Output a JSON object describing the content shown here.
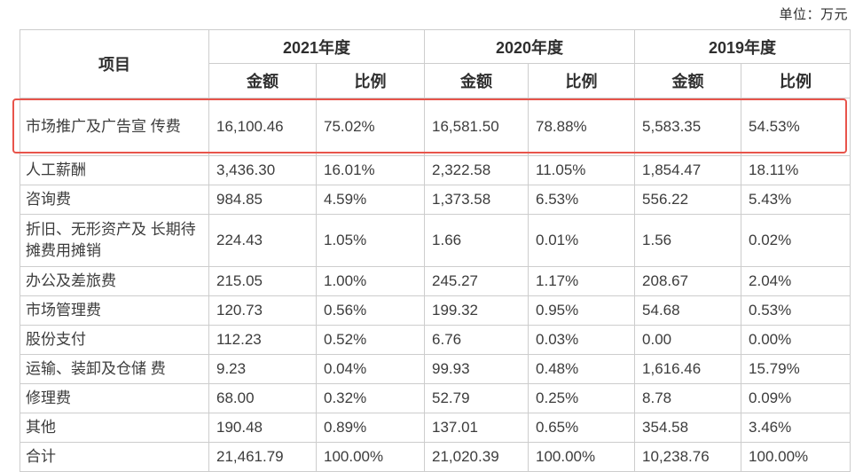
{
  "unit_label": "单位：万元",
  "table": {
    "item_header": "项目",
    "year_groups": [
      {
        "label": "2021年度"
      },
      {
        "label": "2020年度"
      },
      {
        "label": "2019年度"
      }
    ],
    "sub_headers": {
      "amount": "金额",
      "ratio": "比例"
    },
    "rows": [
      {
        "item": "市场推广及广告宣 传费",
        "highlighted": true,
        "values": [
          "16,100.46",
          "75.02%",
          "16,581.50",
          "78.88%",
          "5,583.35",
          "54.53%"
        ]
      },
      {
        "item": "人工薪酬",
        "highlighted": false,
        "values": [
          "3,436.30",
          "16.01%",
          "2,322.58",
          "11.05%",
          "1,854.47",
          "18.11%"
        ]
      },
      {
        "item": "咨询费",
        "highlighted": false,
        "values": [
          "984.85",
          "4.59%",
          "1,373.58",
          "6.53%",
          "556.22",
          "5.43%"
        ]
      },
      {
        "item": "折旧、无形资产及 长期待摊费用摊销",
        "highlighted": false,
        "values": [
          "224.43",
          "1.05%",
          "1.66",
          "0.01%",
          "1.56",
          "0.02%"
        ]
      },
      {
        "item": "办公及差旅费",
        "highlighted": false,
        "values": [
          "215.05",
          "1.00%",
          "245.27",
          "1.17%",
          "208.67",
          "2.04%"
        ]
      },
      {
        "item": "市场管理费",
        "highlighted": false,
        "values": [
          "120.73",
          "0.56%",
          "199.32",
          "0.95%",
          "54.68",
          "0.53%"
        ]
      },
      {
        "item": "股份支付",
        "highlighted": false,
        "values": [
          "112.23",
          "0.52%",
          "6.76",
          "0.03%",
          "0.00",
          "0.00%"
        ]
      },
      {
        "item": "运输、装卸及仓储 费",
        "highlighted": false,
        "values": [
          "9.23",
          "0.04%",
          "99.93",
          "0.48%",
          "1,616.46",
          "15.79%"
        ]
      },
      {
        "item": "修理费",
        "highlighted": false,
        "values": [
          "68.00",
          "0.32%",
          "52.79",
          "0.25%",
          "8.78",
          "0.09%"
        ]
      },
      {
        "item": "其他",
        "highlighted": false,
        "values": [
          "190.48",
          "0.89%",
          "137.01",
          "0.65%",
          "354.58",
          "3.46%"
        ]
      },
      {
        "item": "合计",
        "highlighted": false,
        "values": [
          "21,461.79",
          "100.00%",
          "21,020.39",
          "100.00%",
          "10,238.76",
          "100.00%"
        ]
      }
    ]
  },
  "colors": {
    "highlight_border": "#e8544b",
    "table_border": "#cdcdcd",
    "text": "#3c3c3c"
  }
}
